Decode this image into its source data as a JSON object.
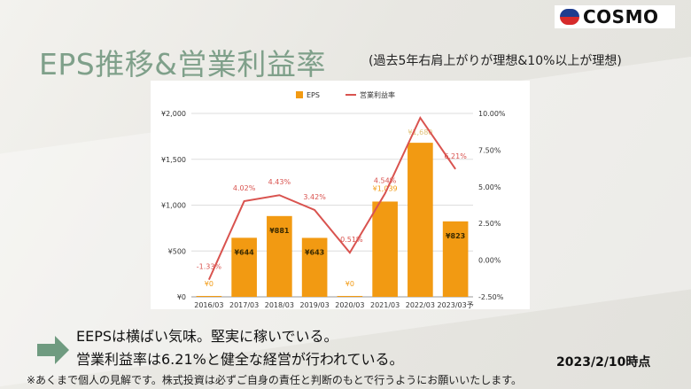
{
  "logo": {
    "text": "COSMO"
  },
  "slide": {
    "title": "EPS推移&営業利益率",
    "subtitle": "(過去5年右肩上がりが理想&10%以上が理想)",
    "comment_line1": "EEPSは横ばい気味。堅実に稼いでいる。",
    "comment_line2": "営業利益率は6.21%と健全な経営が行われている。",
    "date": "2023/2/10時点",
    "disclaimer": "※あくまで個人の見解です。株式投資は必ずご自身の責任と判断のもとで行うようにお願いいたします。"
  },
  "colors": {
    "bar": "#f29a12",
    "line": "#d9534f",
    "title": "#7fa08a",
    "arrow": "#6f9b80"
  },
  "chart_data": {
    "type": "bar+line",
    "categories": [
      "2016/03",
      "2017/03",
      "2018/03",
      "2019/03",
      "2020/03",
      "2021/03",
      "2022/03",
      "2023/03予"
    ],
    "series": [
      {
        "name": "EPS",
        "type": "bar",
        "axis": "left",
        "values": [
          0,
          644,
          881,
          643,
          0,
          1039,
          1680,
          823
        ],
        "labels": [
          "¥0",
          "¥644",
          "¥881",
          "¥643",
          "¥0",
          "¥1,039",
          "¥1,680",
          "¥823"
        ]
      },
      {
        "name": "営業利益率",
        "type": "line",
        "axis": "right",
        "values": [
          -1.33,
          4.02,
          4.43,
          3.42,
          0.51,
          4.54,
          9.7,
          6.21
        ],
        "labels": [
          "-1.33%",
          "4.02%",
          "4.43%",
          "3.42%",
          "0.51%",
          "4.54%",
          "",
          "6.21%"
        ]
      }
    ],
    "left_axis": {
      "ylim": [
        0,
        2000
      ],
      "ticks": [
        "¥0",
        "¥500",
        "¥1,000",
        "¥1,500",
        "¥2,000"
      ]
    },
    "right_axis": {
      "ylim": [
        -2.5,
        10
      ],
      "ticks": [
        "-2.50%",
        "0.00%",
        "2.50%",
        "5.00%",
        "7.50%",
        "10.00%"
      ]
    },
    "legend": "top-center",
    "grid": true
  }
}
